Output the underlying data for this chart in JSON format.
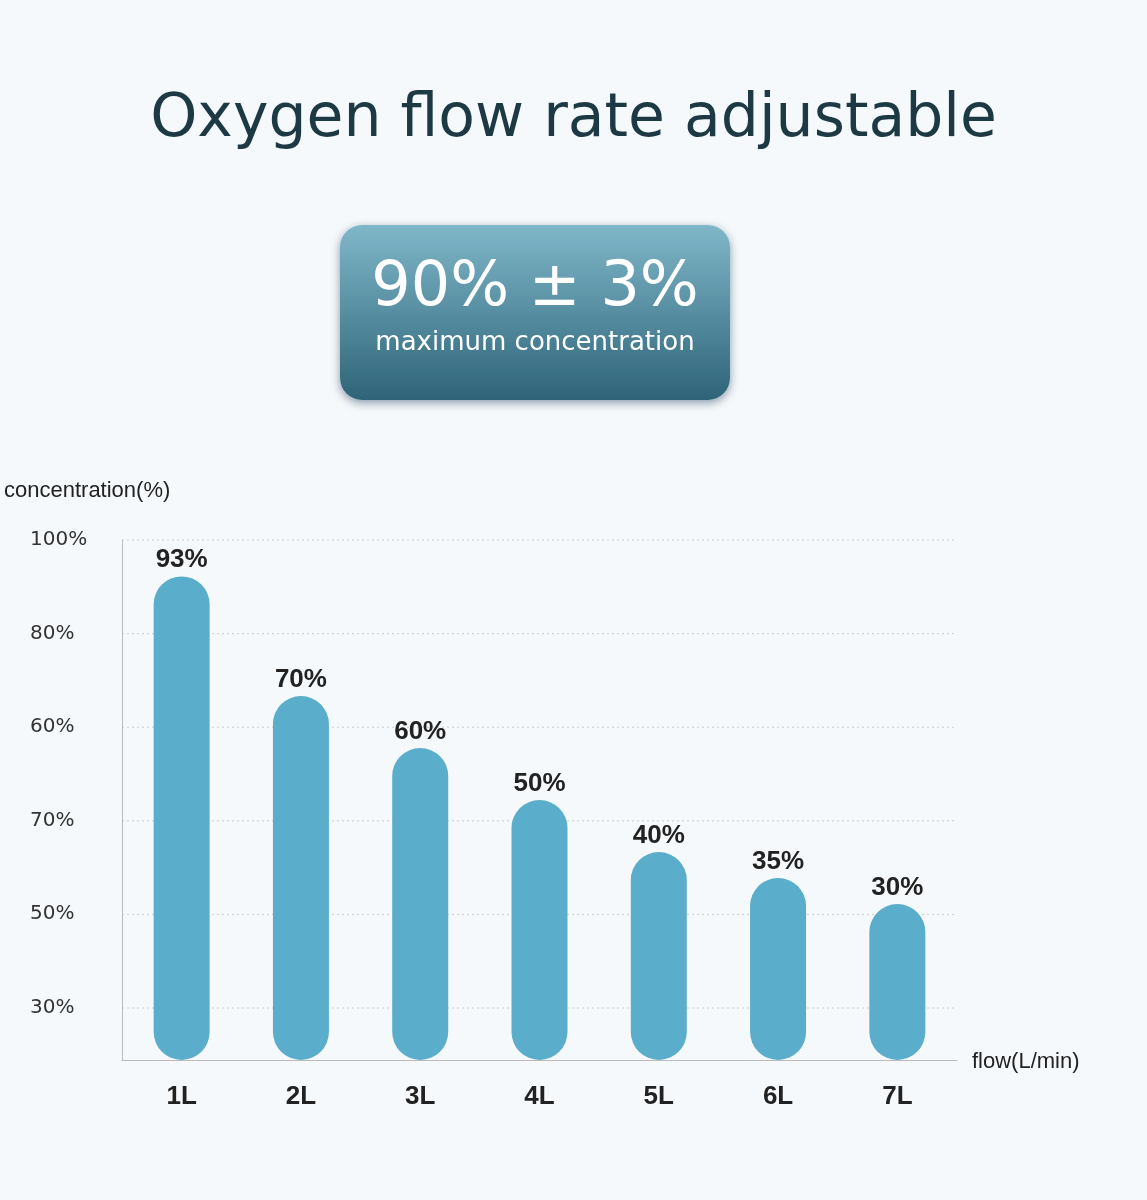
{
  "chart_data": {
    "type": "bar",
    "title": "Oxygen flow rate adjustable",
    "annotations": [
      "90% ± 3%",
      "maximum concentration",
      "100%",
      "80%",
      "60%",
      "70%",
      "50%",
      "30%"
    ],
    "xlabel": "flow(L/min)",
    "ylabel": "concentration(%)",
    "categories": [
      "1L",
      "2L",
      "3L",
      "4L",
      "5L",
      "6L",
      "7L"
    ],
    "values": [
      93,
      70,
      60,
      50,
      40,
      35,
      30
    ],
    "value_labels": [
      "93%",
      "70%",
      "60%",
      "50%",
      "40%",
      "35%",
      "30%"
    ],
    "color": "#5aaecb",
    "grid": "y"
  }
}
